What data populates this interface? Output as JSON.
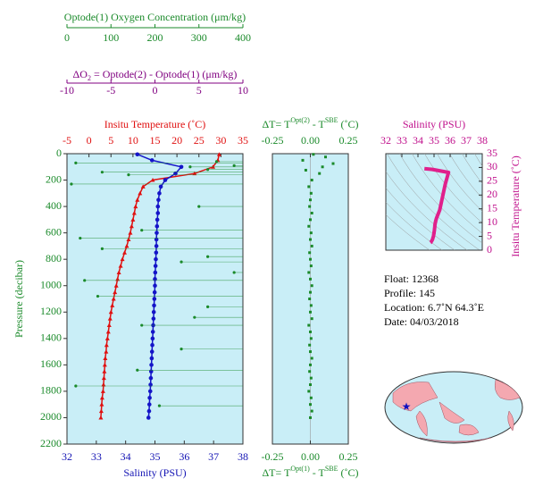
{
  "chart_data": [
    {
      "type": "profile",
      "ylabel": "Pressure (decibar)",
      "ylim": [
        0,
        2200
      ],
      "yticks": [
        0,
        200,
        400,
        600,
        800,
        1000,
        1200,
        1400,
        1600,
        1800,
        2000,
        2200
      ],
      "axes": {
        "salinity": {
          "label": "Salinity (PSU)",
          "xlim": [
            32,
            38
          ],
          "xticks": [
            32,
            33,
            34,
            35,
            36,
            37,
            38
          ],
          "color": "#1414b4"
        },
        "temperature": {
          "label": "Insitu Temperature (˚C)",
          "xlim": [
            -5,
            35
          ],
          "xticks": [
            -5,
            0,
            5,
            10,
            15,
            20,
            25,
            30,
            35
          ],
          "color": "#e01010"
        },
        "oxygen": {
          "label": "Optode(1) Oxygen Concentration (μm/kg)",
          "xlim": [
            0,
            400
          ],
          "xticks": [
            0,
            100,
            200,
            300,
            400
          ],
          "color": "#1a8a2a"
        },
        "delta_o2": {
          "label": [
            "ΔO",
            "2",
            " = Optode(2) - Optode(1)   (μm/kg)"
          ],
          "xlim": [
            -10,
            10
          ],
          "xticks": [
            -10,
            -5,
            0,
            5,
            10
          ],
          "color": "#800080"
        }
      },
      "series": [
        {
          "axis": "temperature",
          "color": "#e01010",
          "pressure": [
            5,
            50,
            100,
            150,
            200,
            250,
            300,
            350,
            400,
            450,
            500,
            550,
            600,
            650,
            700,
            750,
            800,
            850,
            900,
            950,
            1000,
            1050,
            1100,
            1150,
            1200,
            1250,
            1300,
            1350,
            1400,
            1450,
            1500,
            1550,
            1600,
            1650,
            1700,
            1750,
            1800,
            1850,
            1900,
            1950,
            2000
          ],
          "values": [
            29.6,
            29.3,
            28.2,
            24.0,
            14.5,
            12.3,
            11.6,
            11.0,
            10.6,
            10.3,
            10.0,
            9.7,
            9.4,
            9.0,
            8.6,
            8.1,
            7.6,
            7.2,
            6.8,
            6.5,
            6.2,
            5.9,
            5.6,
            5.3,
            5.0,
            4.8,
            4.6,
            4.4,
            4.2,
            4.0,
            3.9,
            3.7,
            3.6,
            3.5,
            3.4,
            3.3,
            3.2,
            3.0,
            2.9,
            2.8,
            2.7
          ]
        },
        {
          "axis": "salinity",
          "color": "#1414c8",
          "pressure": [
            5,
            50,
            100,
            150,
            200,
            250,
            300,
            350,
            400,
            450,
            500,
            550,
            600,
            650,
            700,
            750,
            800,
            850,
            900,
            950,
            1000,
            1050,
            1100,
            1150,
            1200,
            1250,
            1300,
            1350,
            1400,
            1450,
            1500,
            1550,
            1600,
            1650,
            1700,
            1750,
            1800,
            1850,
            1900,
            1950,
            2000
          ],
          "values": [
            34.4,
            34.9,
            35.9,
            35.7,
            35.35,
            35.2,
            35.15,
            35.12,
            35.1,
            35.1,
            35.08,
            35.07,
            35.06,
            35.05,
            35.05,
            35.04,
            35.03,
            35.02,
            35.01,
            35.0,
            35.0,
            34.99,
            34.98,
            34.97,
            34.96,
            34.95,
            34.94,
            34.93,
            34.92,
            34.91,
            34.9,
            34.89,
            34.88,
            34.87,
            34.86,
            34.85,
            34.84,
            34.82,
            34.81,
            34.8,
            34.78
          ]
        },
        {
          "axis": "delta_o2",
          "color": "#1a8a2a",
          "pressure": [
            60,
            70,
            90,
            100,
            120,
            140,
            160,
            230,
            400,
            580,
            640,
            720,
            780,
            820,
            900,
            960,
            1080,
            1160,
            1240,
            1300,
            1480,
            1640,
            1760,
            1910
          ],
          "values": [
            7,
            -9,
            9,
            4,
            6,
            -6,
            -3,
            -9.5,
            5,
            -1.5,
            -8.5,
            -6,
            6,
            3,
            9,
            -8,
            -6.5,
            6,
            4.5,
            -1.5,
            3,
            -2,
            -9,
            0.5
          ]
        }
      ]
    },
    {
      "type": "scatter",
      "title_top": [
        "ΔT= T",
        "Opt(2)",
        " - T",
        "SBE",
        " (˚C)"
      ],
      "title_bottom": [
        "ΔT= T",
        "Opt(1)",
        " - T",
        "SBE",
        " (˚C)"
      ],
      "color": "#1a8a2a",
      "xlim": [
        -0.25,
        0.25
      ],
      "xticks": [
        -0.25,
        {
          "value": 0,
          "label": "0.00"
        },
        0.25
      ],
      "ylim": [
        0,
        2200
      ],
      "y": [
        5,
        25,
        50,
        75,
        100,
        125,
        150,
        200,
        250,
        300,
        350,
        400,
        450,
        500,
        550,
        600,
        650,
        700,
        750,
        800,
        850,
        900,
        950,
        1000,
        1050,
        1100,
        1150,
        1200,
        1250,
        1300,
        1350,
        1400,
        1450,
        1500,
        1550,
        1600,
        1650,
        1700,
        1750,
        1800,
        1850,
        1900,
        1950,
        2000
      ],
      "values": [
        0.02,
        0.1,
        -0.05,
        0.15,
        0.08,
        -0.03,
        0.06,
        0.01,
        -0.01,
        0.005,
        0.0,
        -0.005,
        0.01,
        0.0,
        -0.01,
        0.005,
        0.0,
        0.01,
        -0.005,
        0.0,
        0.005,
        -0.01,
        0.0,
        0.01,
        0.0,
        -0.005,
        0.005,
        0.0,
        0.01,
        -0.01,
        0.0,
        0.005,
        -0.005,
        0.0,
        0.01,
        0.0,
        -0.005,
        0.005,
        0.0,
        -0.01,
        0.005,
        0.0,
        0.01,
        0.0
      ]
    },
    {
      "type": "ts",
      "xlabel": "Salinity (PSU)",
      "ylabel": "Insitu Temperature (˚C)",
      "color": "#e0208c",
      "xlim": [
        32,
        38
      ],
      "xticks": [
        32,
        33,
        34,
        35,
        36,
        37,
        38
      ],
      "ylim": [
        0,
        35
      ],
      "yticks": [
        0,
        5,
        10,
        15,
        20,
        25,
        30,
        35
      ]
    }
  ],
  "info": [
    "Float:  12368",
    "Profile:  145",
    "Location:  6.7˚N  64.3˚E",
    "Date:  04/03/2018"
  ]
}
